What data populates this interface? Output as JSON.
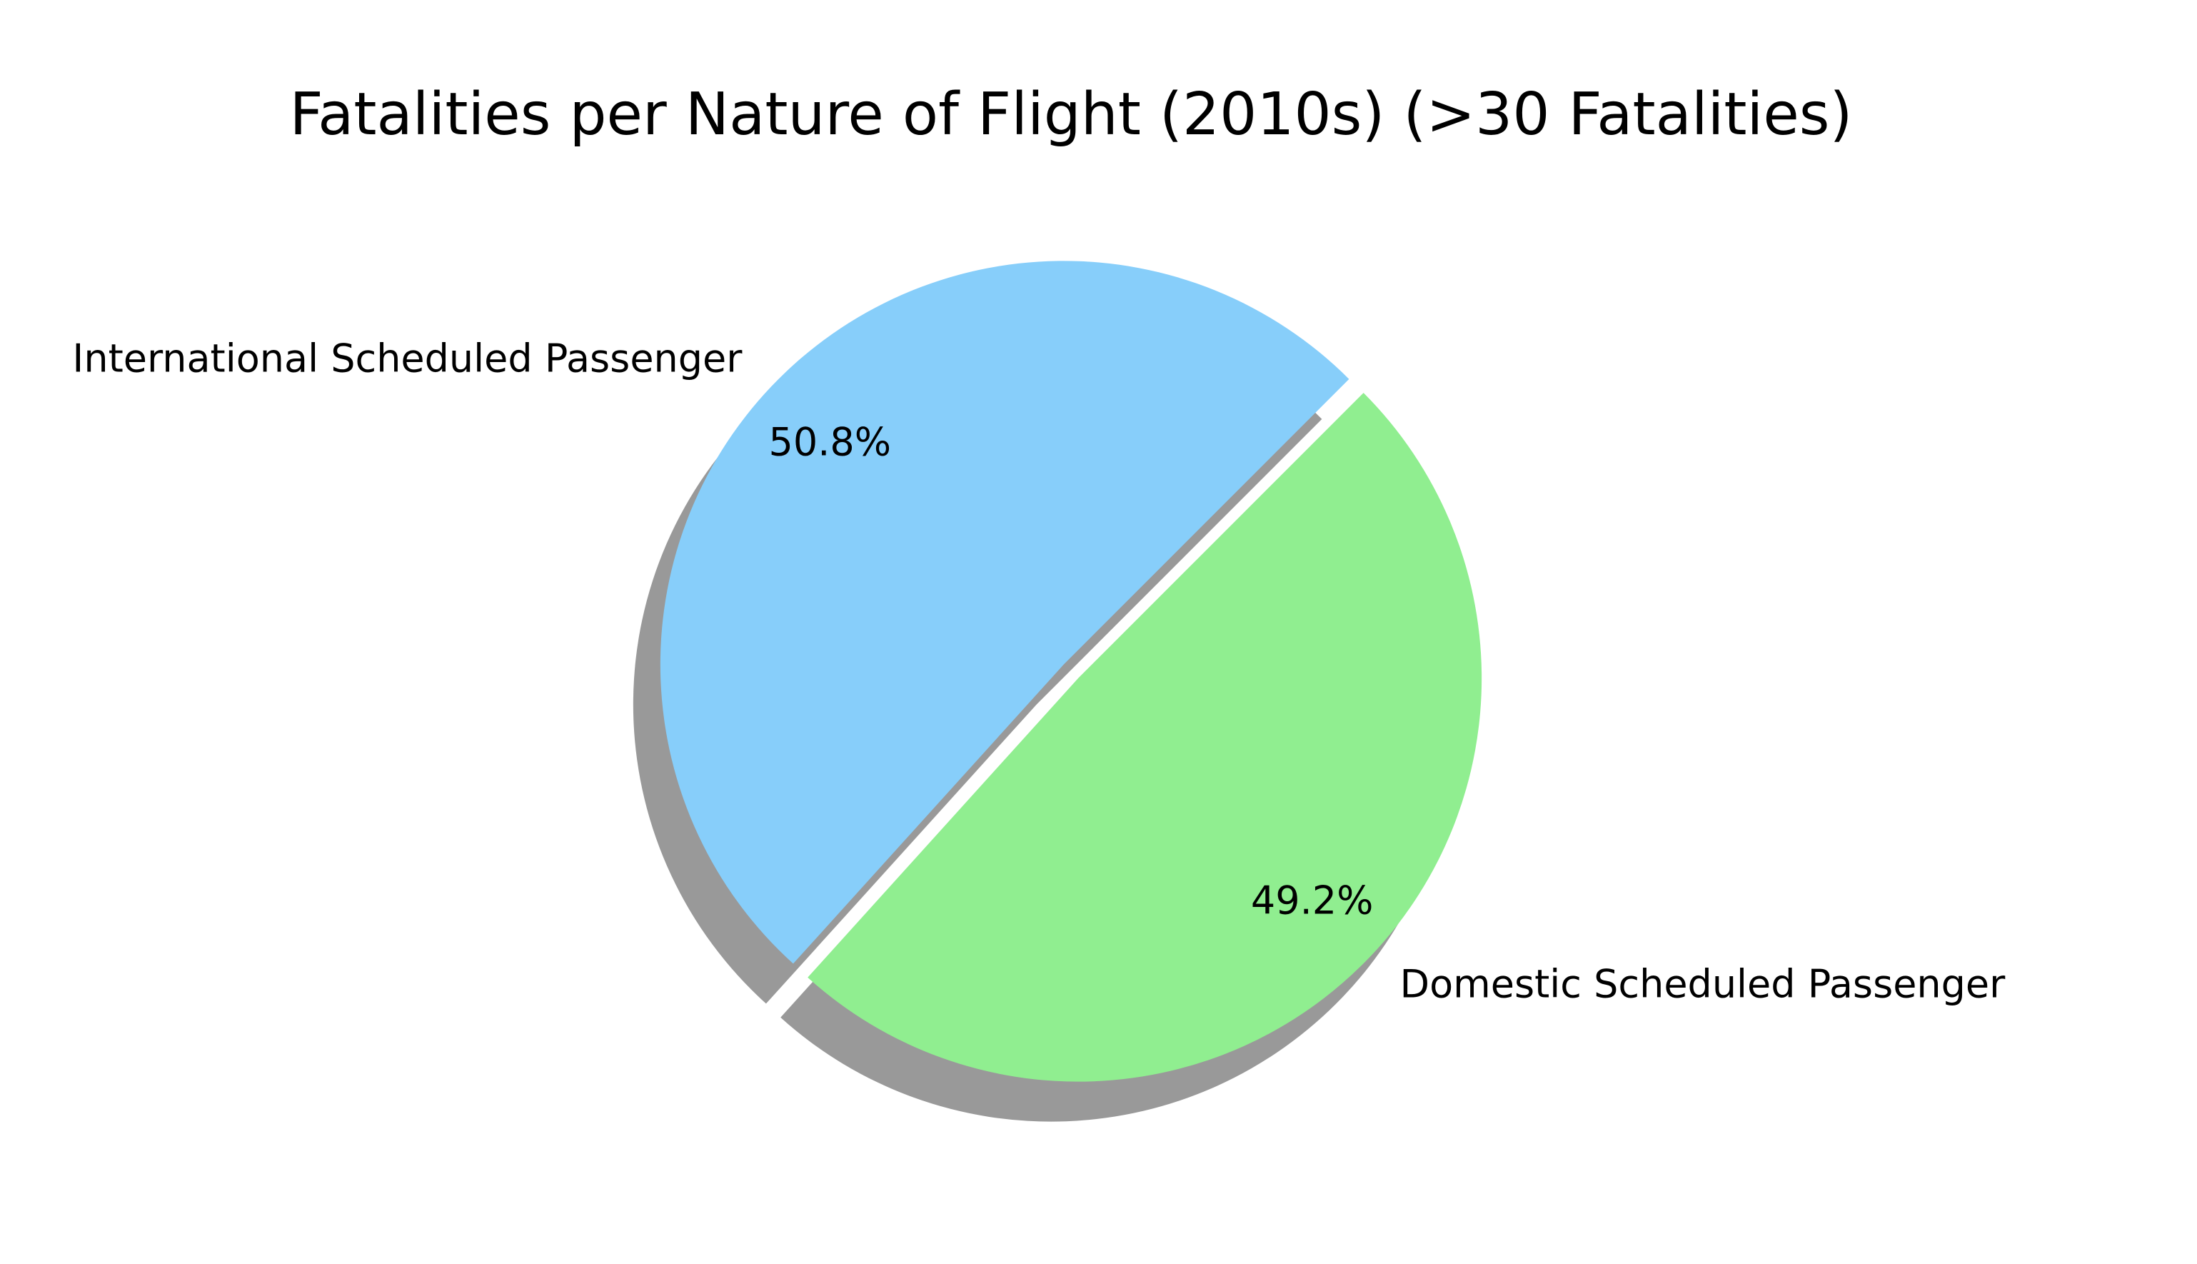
{
  "chart_data": {
    "type": "pie",
    "title": "Fatalities per Nature of Flight (2010s) (>30 Fatalities)",
    "slices": [
      {
        "label": "International Scheduled Passenger",
        "value": 50.8,
        "pct_label": "50.8%",
        "color": "#87CEFA"
      },
      {
        "label": "Domestic Scheduled Passenger",
        "value": 49.2,
        "pct_label": "49.2%",
        "color": "#90EE90"
      }
    ],
    "start_angle_deg": 45,
    "explode": "small offset on both slices",
    "shadow": true,
    "legend": "none"
  }
}
